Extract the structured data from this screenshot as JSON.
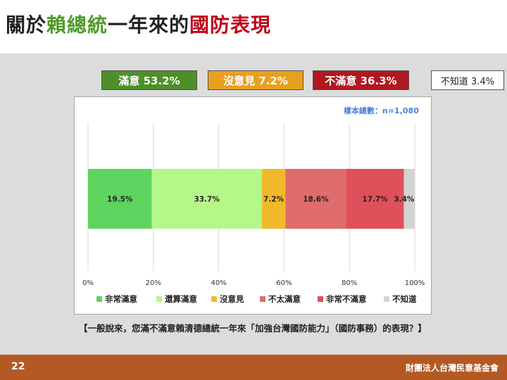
{
  "title": {
    "part1": "關於",
    "part2": "賴總統",
    "part3": "一年來的",
    "part4": "國防表現"
  },
  "summary": {
    "satisfied": "滿意 53.2%",
    "neutral": "沒意見 7.2%",
    "dissatisfied": "不滿意 36.3%",
    "dont_know": "不知道 3.4%"
  },
  "sample_size": "樣本總數：n=1,080",
  "question": "【一般說來，您滿不滿意賴清德總統一年來「加強台灣國防能力」（國防事務）的表現？】",
  "page_number": "22",
  "organization": "財團法人台灣民意基金會",
  "colors": {
    "very_satisfied": "#5fd35f",
    "fairly_satisfied": "#b6f78a",
    "no_opinion": "#f0b92a",
    "not_very_satisfied": "#e06c6c",
    "very_dissatisfied": "#e0505a",
    "dont_know": "#d4d4d4"
  },
  "chart_data": {
    "type": "bar",
    "orientation": "horizontal-stacked",
    "categories": [
      "非常滿意",
      "還算滿意",
      "沒意見",
      "不太滿意",
      "非常不滿意",
      "不知道"
    ],
    "values": [
      19.5,
      33.7,
      7.2,
      18.6,
      17.7,
      3.4
    ],
    "data_labels": [
      "19.5%",
      "33.7%",
      "7.2%",
      "18.6%",
      "17.7%",
      "3.4%"
    ],
    "xlim": [
      0,
      100
    ],
    "x_ticks": [
      "0%",
      "20%",
      "40%",
      "60%",
      "80%",
      "100%"
    ],
    "grid": true,
    "legend": "bottom"
  }
}
